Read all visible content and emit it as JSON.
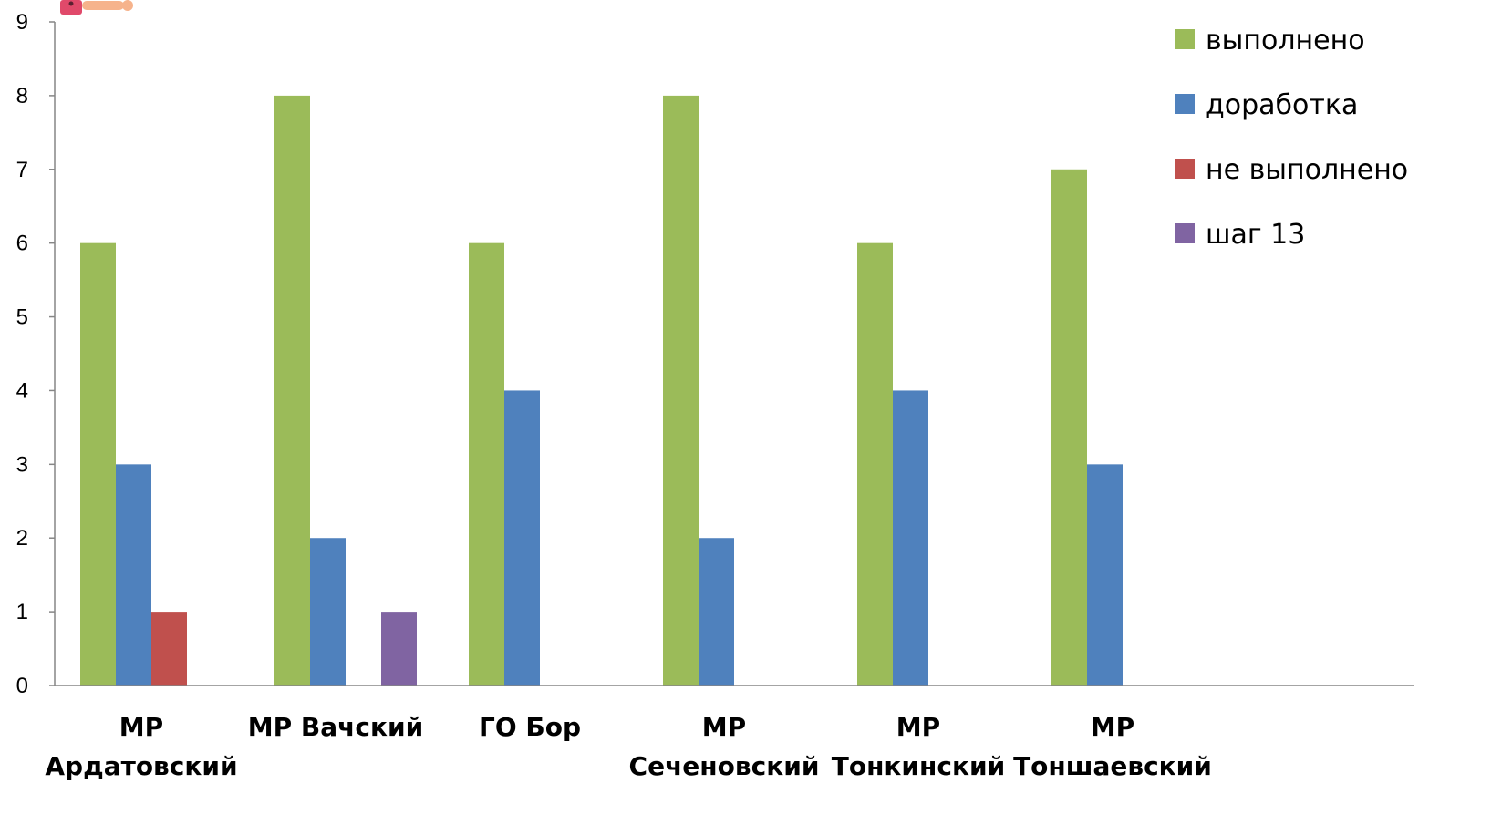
{
  "chart_data": {
    "type": "bar",
    "categories": [
      [
        "МР",
        "Ардатовский"
      ],
      [
        "МР Вачский"
      ],
      [
        "ГО Бор"
      ],
      [
        "МР",
        "Сеченовский"
      ],
      [
        "МР",
        "Тонкинский"
      ],
      [
        "МР",
        "Тоншаевский"
      ]
    ],
    "series": [
      {
        "name": "выполнено",
        "color": "#9BBB59",
        "values": [
          6,
          8,
          6,
          8,
          6,
          7
        ]
      },
      {
        "name": "доработка",
        "color": "#4F81BD",
        "values": [
          3,
          2,
          4,
          2,
          4,
          3
        ]
      },
      {
        "name": "не выполнено",
        "color": "#C0504D",
        "values": [
          1,
          0,
          0,
          0,
          0,
          0
        ]
      },
      {
        "name": "шаг 13",
        "color": "#8064A2",
        "values": [
          0,
          1,
          0,
          0,
          0,
          0
        ]
      }
    ],
    "ylim": [
      0,
      9
    ],
    "yticks": [
      0,
      1,
      2,
      3,
      4,
      5,
      6,
      7,
      8,
      9
    ],
    "xlabel": "",
    "ylabel": "",
    "title": "",
    "grid": false,
    "legend": "top-right"
  }
}
